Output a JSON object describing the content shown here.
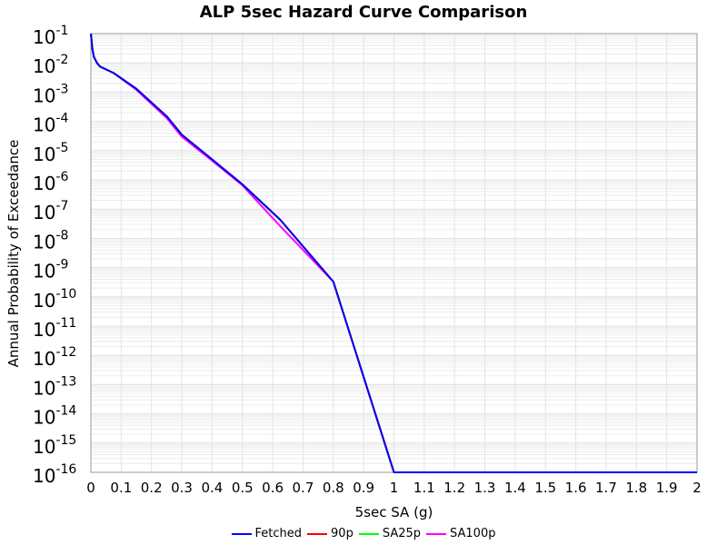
{
  "chart_data": {
    "type": "line",
    "title": "ALP 5sec Hazard Curve Comparison",
    "xlabel": "5sec SA (g)",
    "ylabel": "Annual Probability of Exceedance",
    "xlim": [
      0,
      2
    ],
    "ylim": [
      1e-16,
      0.1
    ],
    "yscale": "log",
    "grid": true,
    "legend_position": "bottom",
    "x_ticks": [
      "0",
      "0.1",
      "0.2",
      "0.3",
      "0.4",
      "0.5",
      "0.6",
      "0.7",
      "0.8",
      "0.9",
      "1",
      "1.1",
      "1.2",
      "1.3",
      "1.4",
      "1.5",
      "1.6",
      "1.7",
      "1.8",
      "1.9",
      "2"
    ],
    "y_tick_exponents": [
      "-1",
      "-2",
      "-3",
      "-4",
      "-5",
      "-6",
      "-7",
      "-8",
      "-9",
      "-10",
      "-11",
      "-12",
      "-13",
      "-14",
      "-15",
      "-16"
    ],
    "y_tick_base": "10",
    "series": [
      {
        "name": "Fetched",
        "color": "#0000ff",
        "x": [
          0,
          0.005,
          0.01,
          0.02,
          0.03,
          0.075,
          0.15,
          0.25,
          0.3,
          0.4,
          0.5,
          0.625,
          0.8,
          1.0,
          2.0
        ],
        "y": [
          0.1,
          0.03,
          0.016,
          0.01,
          0.0075,
          0.0045,
          0.0013,
          0.00015,
          3.5e-05,
          5e-06,
          7e-07,
          4.3e-08,
          3.3e-10,
          1e-16,
          1e-16
        ]
      },
      {
        "name": "90p",
        "color": "#ff0000",
        "x": [
          0,
          0.005,
          0.01,
          0.02,
          0.03,
          0.075,
          0.15,
          0.25,
          0.3,
          0.4,
          0.5,
          0.625,
          0.8,
          1.0,
          2.0
        ],
        "y": [
          0.1,
          0.03,
          0.016,
          0.01,
          0.0075,
          0.0045,
          0.0013,
          0.00015,
          3.5e-05,
          5e-06,
          7e-07,
          4.3e-08,
          3.3e-10,
          1e-16,
          1e-16
        ]
      },
      {
        "name": "SA25p",
        "color": "#00ff00",
        "x": [
          0,
          0.005,
          0.01,
          0.02,
          0.03,
          0.075,
          0.15,
          0.25,
          0.3,
          0.4,
          0.5,
          0.625,
          0.8,
          1.0,
          2.0
        ],
        "y": [
          0.1,
          0.03,
          0.016,
          0.01,
          0.0075,
          0.0045,
          0.0013,
          0.00015,
          3.5e-05,
          5e-06,
          7e-07,
          4.3e-08,
          3.3e-10,
          1e-16,
          1e-16
        ]
      },
      {
        "name": "SA100p",
        "color": "#ff00ff",
        "x": [
          0,
          0.005,
          0.01,
          0.02,
          0.03,
          0.075,
          0.15,
          0.25,
          0.3,
          0.4,
          0.5,
          0.625,
          0.8,
          1.0,
          2.0
        ],
        "y": [
          0.1,
          0.03,
          0.016,
          0.01,
          0.0075,
          0.0045,
          0.0012,
          0.00013,
          3e-05,
          4.5e-06,
          6.5e-07,
          2.6e-08,
          3.3e-10,
          1e-16,
          1e-16
        ]
      }
    ]
  }
}
